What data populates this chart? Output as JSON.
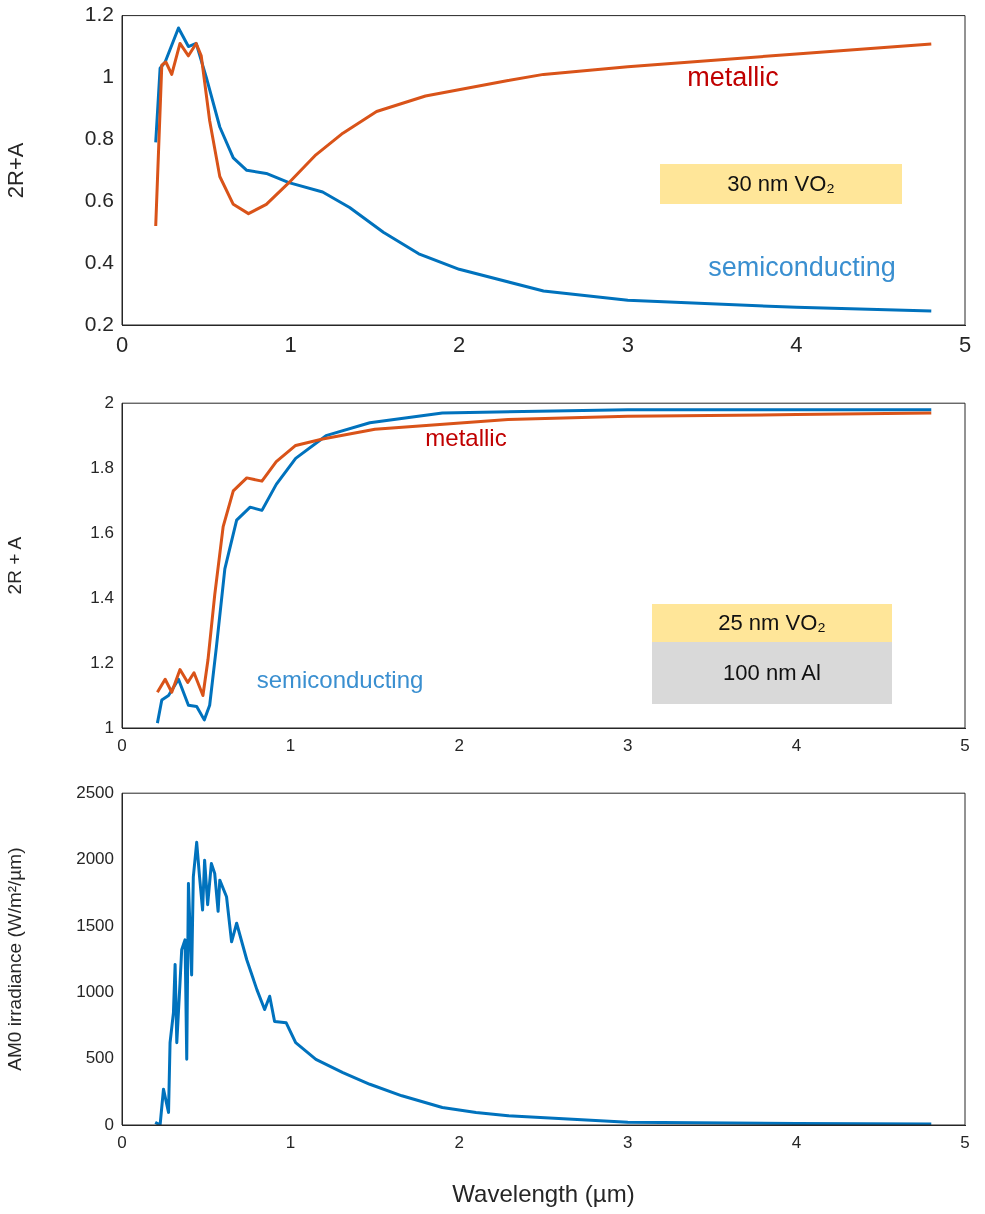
{
  "chart_data": [
    {
      "type": "line",
      "ylabel": "2R+A",
      "xlim": [
        0,
        5
      ],
      "xticks": [
        0,
        1,
        2,
        3,
        4,
        5
      ],
      "ylim": [
        0.2,
        1.2
      ],
      "yticks": [
        0.2,
        0.4,
        0.6,
        0.8,
        1,
        1.2
      ],
      "legend": false,
      "annotations": [
        "30 nm VO₂"
      ],
      "series": [
        {
          "name": "metallic",
          "color": "#d95319",
          "x": [
            0.2,
            0.236,
            0.26,
            0.295,
            0.344,
            0.394,
            0.44,
            0.47,
            0.52,
            0.58,
            0.66,
            0.75,
            0.856,
            0.99,
            1.15,
            1.31,
            1.51,
            1.8,
            2.29,
            2.5,
            3,
            4,
            4.8
          ],
          "values": [
            0.52,
            1.04,
            1.05,
            1.01,
            1.11,
            1.07,
            1.11,
            1.07,
            0.86,
            0.68,
            0.59,
            0.56,
            0.59,
            0.66,
            0.75,
            0.82,
            0.89,
            0.94,
            0.99,
            1.01,
            1.035,
            1.076,
            1.108
          ]
        },
        {
          "name": "semiconducting",
          "color": "#0072bd",
          "x": [
            0.2,
            0.226,
            0.256,
            0.335,
            0.394,
            0.44,
            0.5,
            0.58,
            0.66,
            0.74,
            0.856,
            0.99,
            1.19,
            1.35,
            1.55,
            1.76,
            2,
            2.5,
            3,
            4,
            4.8
          ],
          "values": [
            0.79,
            1.03,
            1.05,
            1.16,
            1.1,
            1.11,
            1.0,
            0.84,
            0.74,
            0.7,
            0.69,
            0.66,
            0.63,
            0.58,
            0.5,
            0.43,
            0.38,
            0.31,
            0.28,
            0.257,
            0.245
          ]
        }
      ]
    },
    {
      "type": "line",
      "ylabel": "2R + A",
      "xlim": [
        0,
        5
      ],
      "xticks": [
        0,
        1,
        2,
        3,
        4,
        5
      ],
      "ylim": [
        1,
        2
      ],
      "yticks": [
        1,
        1.2,
        1.4,
        1.6,
        1.8,
        2
      ],
      "legend": false,
      "annotations": [
        "25 nm VO₂",
        "100 nm Al"
      ],
      "series": [
        {
          "name": "metallic",
          "color": "#d95319",
          "x": [
            0.21,
            0.256,
            0.295,
            0.344,
            0.39,
            0.427,
            0.48,
            0.51,
            0.55,
            0.6,
            0.66,
            0.74,
            0.83,
            0.915,
            1.03,
            1.19,
            1.5,
            2.29,
            3,
            4,
            4.8
          ],
          "values": [
            1.11,
            1.15,
            1.11,
            1.18,
            1.14,
            1.17,
            1.1,
            1.21,
            1.41,
            1.62,
            1.73,
            1.77,
            1.76,
            1.82,
            1.87,
            1.89,
            1.92,
            1.95,
            1.96,
            1.965,
            1.97
          ]
        },
        {
          "name": "semiconducting",
          "color": "#0072bd",
          "x": [
            0.21,
            0.236,
            0.276,
            0.335,
            0.394,
            0.443,
            0.488,
            0.52,
            0.56,
            0.61,
            0.68,
            0.76,
            0.83,
            0.915,
            1.03,
            1.21,
            1.47,
            1.9,
            3,
            4,
            4.8
          ],
          "values": [
            1.015,
            1.086,
            1.1,
            1.15,
            1.07,
            1.066,
            1.025,
            1.07,
            1.25,
            1.49,
            1.64,
            1.68,
            1.67,
            1.75,
            1.83,
            1.9,
            1.94,
            1.97,
            1.98,
            1.98,
            1.98
          ]
        }
      ]
    },
    {
      "type": "line",
      "xlabel": "Wavelength (µm)",
      "ylabel": "AM0 irradiance (W/m²/µm)",
      "xlim": [
        0,
        5
      ],
      "xticks": [
        0,
        1,
        2,
        3,
        4,
        5
      ],
      "ylim": [
        0,
        2500
      ],
      "yticks": [
        0,
        500,
        1000,
        1500,
        2000,
        2500
      ],
      "legend": false,
      "series": [
        {
          "color": "#0072bd",
          "x": [
            0.197,
            0.226,
            0.246,
            0.276,
            0.285,
            0.305,
            0.315,
            0.325,
            0.344,
            0.354,
            0.374,
            0.384,
            0.394,
            0.413,
            0.423,
            0.443,
            0.46,
            0.478,
            0.49,
            0.508,
            0.53,
            0.55,
            0.57,
            0.58,
            0.62,
            0.65,
            0.68,
            0.74,
            0.8,
            0.846,
            0.876,
            0.905,
            0.974,
            1.03,
            1.15,
            1.31,
            1.47,
            1.66,
            1.9,
            2.1,
            2.29,
            3,
            4,
            4.8
          ],
          "values": [
            20,
            0,
            270,
            95,
            620,
            845,
            1210,
            620,
            1070,
            1320,
            1395,
            495,
            1820,
            1130,
            1870,
            2130,
            1870,
            1620,
            1995,
            1660,
            1970,
            1895,
            1610,
            1845,
            1720,
            1380,
            1520,
            1245,
            1020,
            870,
            970,
            780,
            770,
            620,
            495,
            395,
            307,
            220,
            132,
            95,
            70,
            20,
            12,
            8
          ]
        }
      ]
    }
  ]
}
